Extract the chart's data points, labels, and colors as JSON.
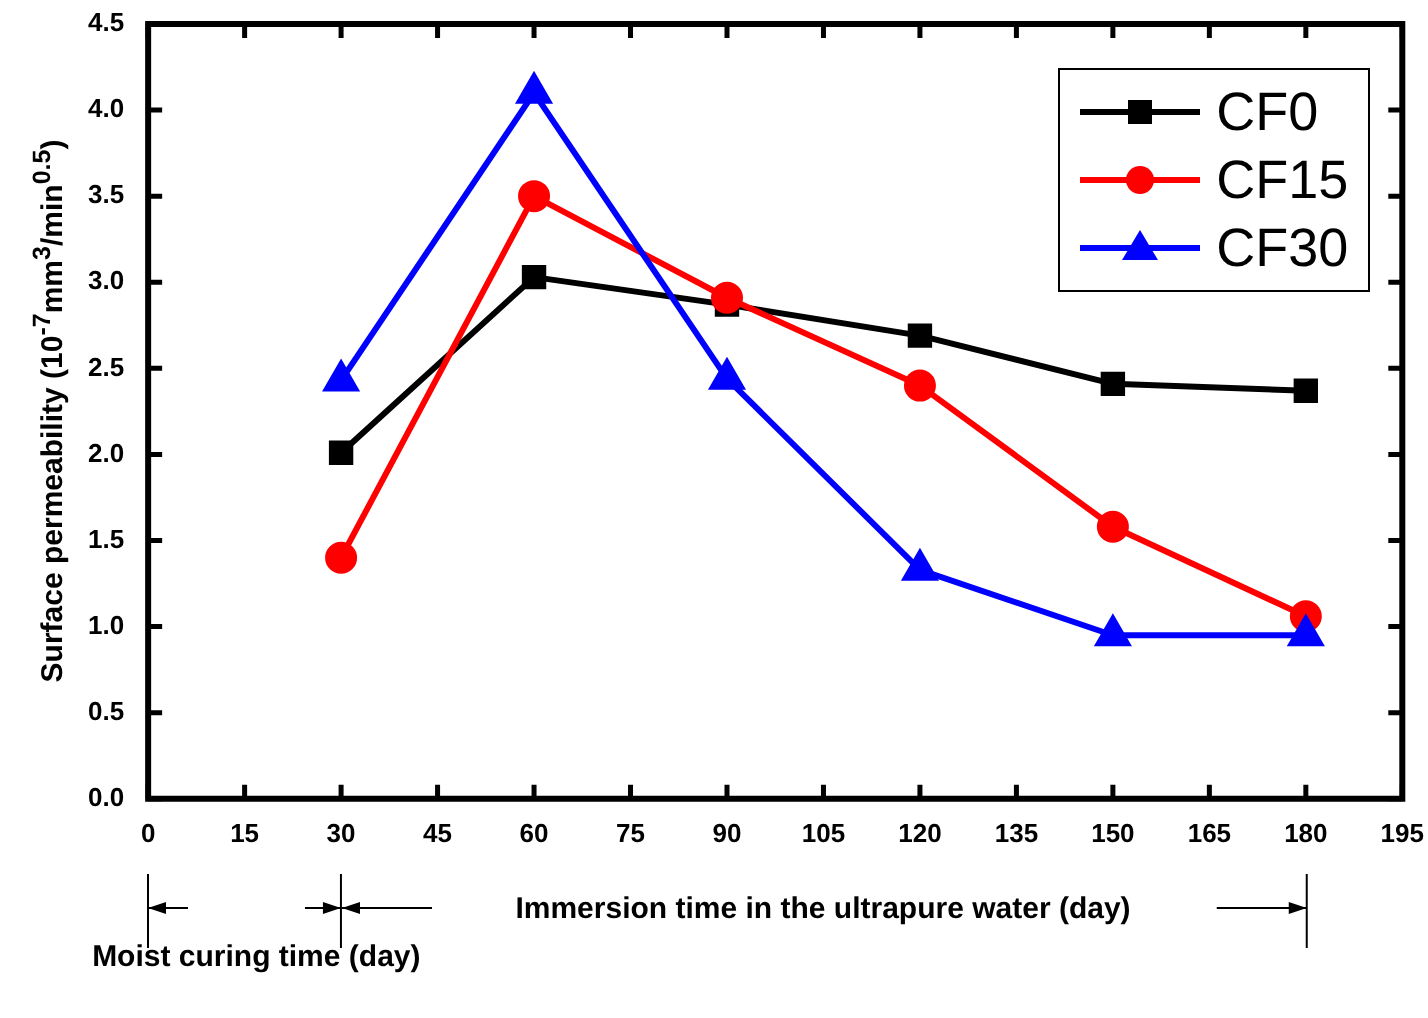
{
  "chart_data": {
    "type": "line",
    "ylabel": "Surface permeability (10$^{-7}$mm$^{3}$/min$^{0.5}$)",
    "annotations": [
      "Immersion time in the ultrapure water (day)",
      "Moist curing time (day)"
    ],
    "x": [
      30,
      60,
      90,
      120,
      150,
      180
    ],
    "series": [
      {
        "name": "CF0",
        "color": "#000000",
        "marker": "square",
        "values": [
          2.01,
          3.03,
          2.87,
          2.69,
          2.41,
          2.37
        ]
      },
      {
        "name": "CF15",
        "color": "#ff0000",
        "marker": "circle",
        "values": [
          1.4,
          3.5,
          2.91,
          2.4,
          1.58,
          1.06
        ]
      },
      {
        "name": "CF30",
        "color": "#0000ff",
        "marker": "triangle",
        "values": [
          2.43,
          4.1,
          2.44,
          1.33,
          0.95,
          0.95
        ]
      }
    ],
    "xlim": [
      0,
      195
    ],
    "xticks": [
      0,
      15,
      30,
      45,
      60,
      75,
      90,
      105,
      120,
      135,
      150,
      165,
      180,
      195
    ],
    "ylim": [
      0,
      4.5
    ],
    "yticks": [
      {
        "value": 0,
        "label": "0.0"
      },
      0.5,
      {
        "value": 1,
        "label": "1.0"
      },
      1.5,
      {
        "value": 2,
        "label": "2.0"
      },
      2.5,
      {
        "value": 3,
        "label": "3.0"
      },
      3.5,
      {
        "value": 4,
        "label": "4.0"
      },
      4.5
    ],
    "grid": false,
    "legend": "top right",
    "line_style": "solid"
  }
}
